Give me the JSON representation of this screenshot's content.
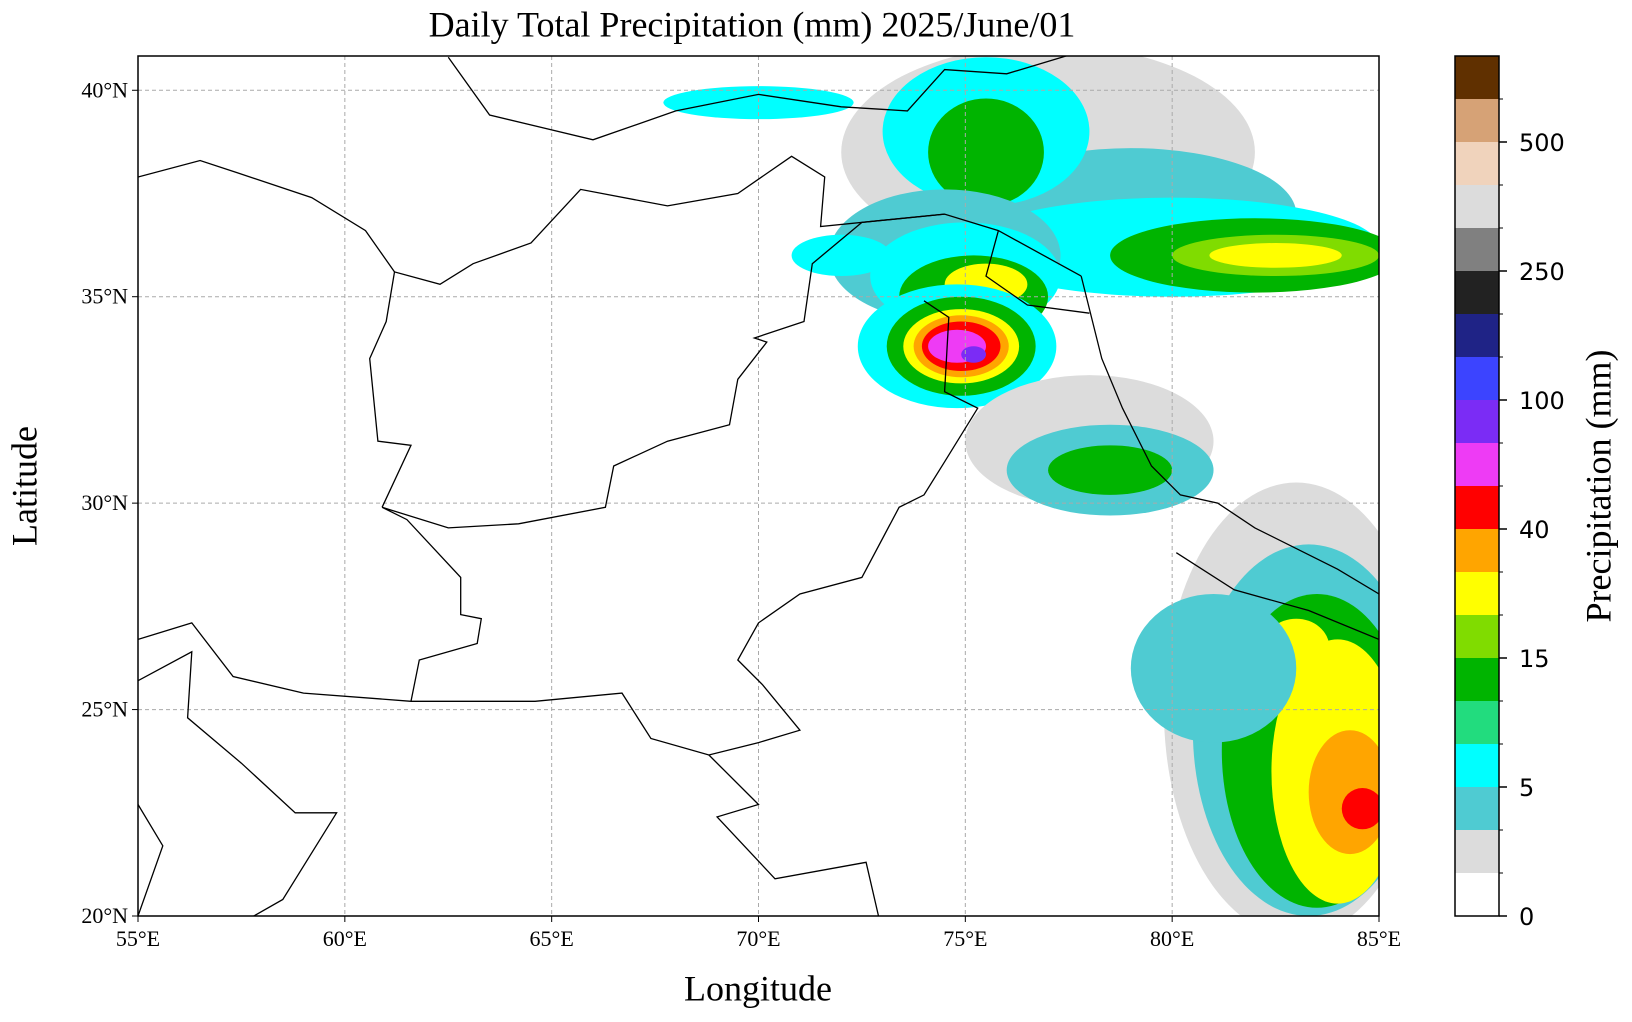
{
  "chart_data": {
    "type": "map",
    "title": "Daily Total Precipitation (mm)  2025/June/01",
    "x_label": "Longitude",
    "y_label": "Latitude",
    "xlim": [
      55,
      85
    ],
    "ylim": [
      20,
      40.83
    ],
    "xticks": [
      {
        "value": 55,
        "label": "55°E"
      },
      {
        "value": 60,
        "label": "60°E"
      },
      {
        "value": 65,
        "label": "65°E"
      },
      {
        "value": 70,
        "label": "70°E"
      },
      {
        "value": 75,
        "label": "75°E"
      },
      {
        "value": 80,
        "label": "80°E"
      },
      {
        "value": 85,
        "label": "85°E"
      }
    ],
    "yticks": [
      {
        "value": 20,
        "label": "20°N"
      },
      {
        "value": 25,
        "label": "25°N"
      },
      {
        "value": 30,
        "label": "30°N"
      },
      {
        "value": 35,
        "label": "35°N"
      },
      {
        "value": 40,
        "label": "40°N"
      }
    ],
    "grid": true,
    "colorbar": {
      "label": "Precipitation (mm)",
      "colors": [
        "#ffffff",
        "#dcdcdc",
        "#4fcbd2",
        "#00ffff",
        "#22dc7e",
        "#00b400",
        "#80dc00",
        "#ffff00",
        "#ffa500",
        "#ff0000",
        "#ee3bf5",
        "#7b2cf5",
        "#3c44ff",
        "#1f2386",
        "#222222",
        "#808080",
        "#dcdcdc",
        "#f0d3bc",
        "#d6a276",
        "#603000"
      ],
      "ticks": [
        0,
        5,
        15,
        40,
        100,
        250,
        500
      ]
    }
  }
}
